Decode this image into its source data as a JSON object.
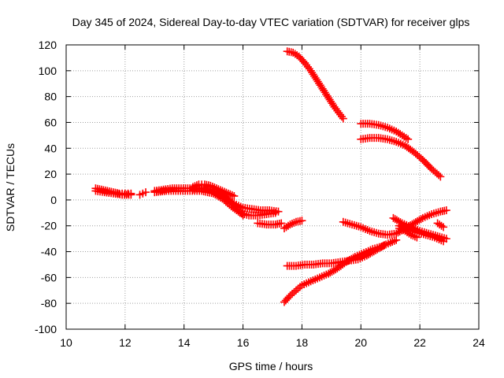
{
  "chart_data": {
    "type": "scatter",
    "title": "Day 345 of 2024, Sidereal Day-to-day VTEC variation (SDTVAR) for receiver glps",
    "xlabel": "GPS time / hours",
    "ylabel": "SDTVAR / TECUs",
    "xlim": [
      10,
      24
    ],
    "ylim": [
      -100,
      120
    ],
    "xticks": [
      10,
      12,
      14,
      16,
      18,
      20,
      22,
      24
    ],
    "yticks": [
      -100,
      -80,
      -60,
      -40,
      -20,
      0,
      20,
      40,
      60,
      80,
      100,
      120
    ],
    "grid": true,
    "marker": "+",
    "color": "#ff0000",
    "series": [
      {
        "x": [
          11.0,
          11.2,
          11.4,
          11.6,
          11.8,
          12.0,
          12.2
        ],
        "y": [
          9,
          8,
          7,
          6,
          5,
          5,
          5
        ]
      },
      {
        "x": [
          11.0,
          11.3,
          11.6,
          11.9,
          12.2
        ],
        "y": [
          7,
          6,
          5,
          4,
          4
        ]
      },
      {
        "x": [
          12.5,
          12.6,
          12.7
        ],
        "y": [
          4,
          5,
          6
        ]
      },
      {
        "x": [
          13.0,
          13.3,
          13.6,
          13.9,
          14.2,
          14.5,
          14.8,
          15.1,
          15.4,
          15.7,
          16.0,
          16.3,
          16.6,
          16.9,
          17.2
        ],
        "y": [
          7,
          8,
          9,
          9,
          9,
          9,
          8,
          6,
          2,
          -3,
          -6,
          -7,
          -8,
          -8,
          -9
        ]
      },
      {
        "x": [
          13.0,
          13.4,
          13.8,
          14.2,
          14.6,
          15.0,
          15.3,
          15.6,
          15.9,
          16.2,
          16.5,
          16.8,
          17.1
        ],
        "y": [
          6,
          7,
          7,
          7,
          7,
          5,
          1,
          -5,
          -10,
          -12,
          -12,
          -11,
          -10
        ]
      },
      {
        "x": [
          14.3,
          14.5,
          14.7,
          14.9,
          15.1,
          15.3,
          15.5,
          15.7
        ],
        "y": [
          10,
          12,
          12,
          11,
          9,
          7,
          5,
          3
        ]
      },
      {
        "x": [
          14.3,
          14.6,
          14.9,
          15.2,
          15.5,
          15.8,
          16.0
        ],
        "y": [
          8,
          9,
          8,
          5,
          0,
          -6,
          -12
        ]
      },
      {
        "x": [
          16.5,
          16.8,
          17.1,
          17.3
        ],
        "y": [
          -18,
          -19,
          -19,
          -18
        ]
      },
      {
        "x": [
          17.4,
          17.6,
          17.8,
          18.0
        ],
        "y": [
          -22,
          -19,
          -17,
          -16
        ]
      },
      {
        "x": [
          17.5,
          17.7,
          17.9,
          18.1,
          18.3,
          18.5,
          18.7,
          18.9,
          19.1,
          19.3,
          19.4
        ],
        "y": [
          115,
          114,
          111,
          106,
          100,
          93,
          86,
          79,
          72,
          66,
          63
        ]
      },
      {
        "x": [
          17.5,
          17.8,
          18.1,
          18.4,
          18.7,
          19.0,
          19.3,
          19.6,
          19.9,
          20.2,
          20.5,
          20.8
        ],
        "y": [
          -51,
          -51,
          -50,
          -50,
          -49,
          -49,
          -48,
          -47,
          -46,
          -43,
          -39,
          -35
        ]
      },
      {
        "x": [
          17.4,
          17.6,
          17.8,
          18.0,
          18.3,
          18.6,
          18.9,
          19.2,
          19.5,
          19.8,
          20.1,
          20.4,
          20.7,
          21.0,
          21.2
        ],
        "y": [
          -79,
          -74,
          -70,
          -66,
          -63,
          -60,
          -57,
          -53,
          -48,
          -44,
          -41,
          -38,
          -36,
          -33,
          -31
        ]
      },
      {
        "x": [
          19.4,
          19.7,
          20.0,
          20.3,
          20.6,
          20.9,
          21.2,
          21.5,
          21.8,
          22.1,
          22.4,
          22.7,
          22.9
        ],
        "y": [
          -17,
          -19,
          -21,
          -24,
          -26,
          -27,
          -26,
          -22,
          -18,
          -14,
          -11,
          -9,
          -8
        ]
      },
      {
        "x": [
          20.0,
          20.3,
          20.6,
          20.9,
          21.2,
          21.4,
          21.6
        ],
        "y": [
          59,
          59,
          58,
          56,
          53,
          50,
          47
        ]
      },
      {
        "x": [
          20.0,
          20.3,
          20.6,
          20.9,
          21.2,
          21.5,
          21.8,
          22.1,
          22.4,
          22.7
        ],
        "y": [
          47,
          48,
          48,
          47,
          45,
          42,
          37,
          31,
          24,
          18
        ]
      },
      {
        "x": [
          21.1,
          21.4,
          21.7,
          22.0,
          22.3,
          22.6,
          22.9
        ],
        "y": [
          -14,
          -18,
          -21,
          -24,
          -26,
          -28,
          -30
        ]
      },
      {
        "x": [
          21.3,
          21.6,
          21.9,
          22.2,
          22.5,
          22.8
        ],
        "y": [
          -20,
          -22,
          -25,
          -27,
          -29,
          -32
        ]
      },
      {
        "x": [
          21.3,
          21.5,
          21.7,
          21.9
        ],
        "y": [
          -22,
          -24,
          -27,
          -29
        ]
      },
      {
        "x": [
          22.6,
          22.8
        ],
        "y": [
          -18,
          -21
        ]
      }
    ]
  }
}
